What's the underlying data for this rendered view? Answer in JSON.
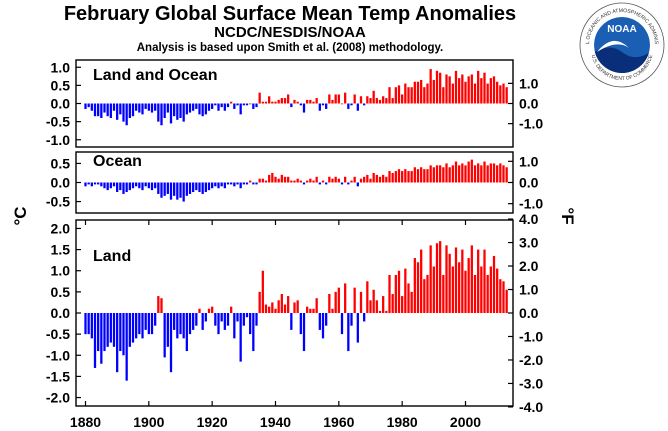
{
  "header": {
    "title": "February Global Surface Mean Temp Anomalies",
    "subtitle": "NCDC/NESDIS/NOAA",
    "note": "Analysis is based upon Smith et al. (2008) methodology."
  },
  "logo": {
    "text": "NOAA",
    "ring_text": "NATIONAL OCEANIC AND ATMOSPHERIC ADMINISTRATION",
    "ring_text_bottom": "U.S. DEPARTMENT OF COMMERCE",
    "colors": {
      "sky": "#1a5fb4",
      "ring": "#ffffff",
      "sea": "#0a2f7a",
      "gull": "#ffffff"
    }
  },
  "colors": {
    "positive": "#ff0000",
    "negative": "#0000ff"
  },
  "chart_data": [
    {
      "type": "bar",
      "label": "Land and Ocean",
      "x_start": 1880,
      "ylabel_left": "°C",
      "ylabel_right": "°F",
      "ylim": [
        -1.2,
        1.2
      ],
      "yticks_c": [
        "1.0",
        "0.5",
        "0.0",
        "-0.5",
        "-1.0"
      ],
      "yticks_c_values": [
        1.0,
        0.5,
        0.0,
        -0.5,
        -1.0
      ],
      "yticks_f": [
        "1.0",
        "0.0",
        "-1.0"
      ],
      "yticks_f_values": [
        1.0,
        0.0,
        -1.0
      ],
      "values": [
        -0.15,
        -0.1,
        -0.2,
        -0.35,
        -0.35,
        -0.4,
        -0.25,
        -0.35,
        -0.4,
        -0.2,
        -0.45,
        -0.3,
        -0.5,
        -0.6,
        -0.4,
        -0.35,
        -0.2,
        -0.25,
        -0.3,
        -0.15,
        -0.2,
        -0.25,
        -0.2,
        -0.5,
        -0.6,
        -0.4,
        -0.25,
        -0.55,
        -0.35,
        -0.45,
        -0.4,
        -0.5,
        -0.3,
        -0.25,
        -0.2,
        -0.15,
        -0.3,
        -0.35,
        -0.3,
        -0.2,
        -0.15,
        -0.05,
        -0.2,
        -0.1,
        -0.2,
        -0.1,
        0.05,
        -0.15,
        -0.05,
        -0.3,
        -0.05,
        -0.05,
        0.0,
        -0.15,
        -0.1,
        0.3,
        0.05,
        0.05,
        0.2,
        0.05,
        0.05,
        0.1,
        0.15,
        0.15,
        0.25,
        -0.1,
        0.1,
        0.05,
        -0.05,
        -0.25,
        0.1,
        0.1,
        0.05,
        0.15,
        -0.2,
        -0.05,
        -0.15,
        0.25,
        0.1,
        0.25,
        0.25,
        0.0,
        0.3,
        -0.15,
        -0.05,
        0.25,
        -0.2,
        0.2,
        -0.05,
        0.2,
        0.15,
        0.35,
        0.15,
        0.1,
        0.2,
        0.15,
        0.45,
        0.15,
        0.45,
        0.5,
        0.25,
        0.55,
        0.45,
        0.45,
        0.6,
        0.6,
        0.65,
        0.45,
        0.55,
        0.95,
        0.65,
        0.9,
        0.85,
        0.45,
        0.8,
        0.75,
        0.55,
        0.9,
        0.7,
        0.8,
        0.6,
        0.75,
        0.8,
        0.55,
        0.9,
        0.7,
        0.85,
        0.55,
        0.7,
        0.75,
        0.6,
        0.5,
        0.55,
        0.45
      ]
    },
    {
      "type": "bar",
      "label": "Ocean",
      "x_start": 1880,
      "ylim": [
        -0.8,
        0.8
      ],
      "yticks_c": [
        "0.5",
        "0.0",
        "-0.5"
      ],
      "yticks_c_values": [
        0.5,
        0.0,
        -0.5
      ],
      "yticks_f": [
        "1.0",
        "0.0",
        "-1.0"
      ],
      "yticks_f_values": [
        1.0,
        0.0,
        -1.0
      ],
      "values": [
        -0.1,
        -0.05,
        -0.1,
        -0.05,
        -0.05,
        -0.1,
        -0.15,
        -0.2,
        -0.15,
        -0.1,
        -0.25,
        -0.2,
        -0.3,
        -0.25,
        -0.2,
        -0.15,
        -0.1,
        -0.15,
        -0.2,
        -0.1,
        -0.15,
        -0.2,
        -0.15,
        -0.3,
        -0.4,
        -0.35,
        -0.3,
        -0.45,
        -0.35,
        -0.45,
        -0.4,
        -0.5,
        -0.35,
        -0.3,
        -0.25,
        -0.2,
        -0.25,
        -0.3,
        -0.25,
        -0.2,
        -0.15,
        -0.1,
        -0.15,
        -0.1,
        -0.15,
        -0.05,
        -0.05,
        -0.1,
        -0.05,
        -0.15,
        -0.05,
        -0.05,
        0.05,
        -0.05,
        -0.05,
        0.1,
        0.1,
        0.05,
        0.2,
        0.25,
        0.15,
        0.1,
        0.2,
        0.15,
        0.15,
        0.05,
        0.05,
        0.1,
        0.05,
        -0.05,
        0.05,
        0.1,
        0.05,
        0.15,
        -0.05,
        0.05,
        -0.05,
        0.15,
        0.1,
        0.15,
        0.1,
        -0.05,
        0.15,
        -0.05,
        0.05,
        0.15,
        -0.1,
        0.1,
        0.15,
        0.2,
        0.1,
        0.25,
        0.2,
        0.15,
        0.2,
        0.15,
        0.3,
        0.25,
        0.3,
        0.35,
        0.3,
        0.35,
        0.3,
        0.3,
        0.4,
        0.35,
        0.4,
        0.35,
        0.35,
        0.45,
        0.4,
        0.45,
        0.45,
        0.4,
        0.5,
        0.4,
        0.45,
        0.55,
        0.45,
        0.5,
        0.45,
        0.55,
        0.6,
        0.45,
        0.5,
        0.45,
        0.55,
        0.45,
        0.5,
        0.5,
        0.45,
        0.5,
        0.45,
        0.4
      ]
    },
    {
      "type": "bar",
      "label": "Land",
      "x_start": 1880,
      "ylim": [
        -2.2,
        2.2
      ],
      "yticks_c": [
        "2.0",
        "1.5",
        "1.0",
        "0.5",
        "0.0",
        "-0.5",
        "-1.0",
        "-1.5",
        "-2.0"
      ],
      "yticks_c_values": [
        2.0,
        1.5,
        1.0,
        0.5,
        0.0,
        -0.5,
        -1.0,
        -1.5,
        -2.0
      ],
      "yticks_f": [
        "4.0",
        "3.0",
        "2.0",
        "1.0",
        "0.0",
        "-1.0",
        "-2.0",
        "-3.0",
        "-4.0"
      ],
      "yticks_f_values": [
        4.0,
        3.0,
        2.0,
        1.0,
        0.0,
        -1.0,
        -2.0,
        -3.0,
        -4.0
      ],
      "xticks": [
        "1880",
        "1900",
        "1920",
        "1940",
        "1960",
        "1980",
        "2000"
      ],
      "xtick_values": [
        1880,
        1900,
        1920,
        1940,
        1960,
        1980,
        2000
      ],
      "values": [
        -0.5,
        -0.5,
        -0.6,
        -1.3,
        -0.9,
        -1.2,
        -0.9,
        -0.8,
        -0.7,
        -0.8,
        -1.4,
        -0.9,
        -1.0,
        -1.6,
        -0.8,
        -0.7,
        -0.6,
        -0.5,
        -0.6,
        -0.4,
        -0.5,
        -0.5,
        -0.3,
        0.4,
        0.35,
        -1.05,
        -0.8,
        -1.4,
        -0.4,
        -0.6,
        -0.5,
        -0.6,
        -0.9,
        -0.5,
        -0.4,
        -0.3,
        0.1,
        -0.4,
        -0.2,
        0.1,
        0.15,
        -0.3,
        -0.5,
        -0.2,
        -0.4,
        -0.3,
        0.15,
        -0.6,
        -0.2,
        -1.15,
        -0.3,
        -0.1,
        -0.5,
        -0.9,
        -0.3,
        0.5,
        1.0,
        0.2,
        0.15,
        0.25,
        0.1,
        0.3,
        0.45,
        0.2,
        0.4,
        -0.4,
        0.25,
        0.3,
        -0.5,
        -0.9,
        0.15,
        0.1,
        0.1,
        0.35,
        -0.4,
        -0.6,
        -0.3,
        0.45,
        0.1,
        0.5,
        0.6,
        -0.5,
        0.7,
        -0.9,
        -0.3,
        0.6,
        -0.7,
        0.5,
        -0.2,
        0.75,
        0.3,
        0.55,
        0.3,
        0.05,
        0.4,
        0.05,
        0.9,
        0.45,
        0.9,
        1.0,
        0.4,
        1.05,
        0.7,
        0.5,
        1.3,
        1.2,
        1.5,
        0.8,
        0.9,
        1.6,
        1.1,
        1.65,
        1.7,
        0.9,
        1.6,
        1.4,
        1.1,
        1.55,
        1.2,
        1.5,
        1.0,
        1.3,
        1.6,
        0.9,
        1.5,
        1.1,
        1.5,
        0.9,
        1.1,
        1.35,
        1.05,
        0.8,
        0.75,
        0.55
      ]
    }
  ]
}
